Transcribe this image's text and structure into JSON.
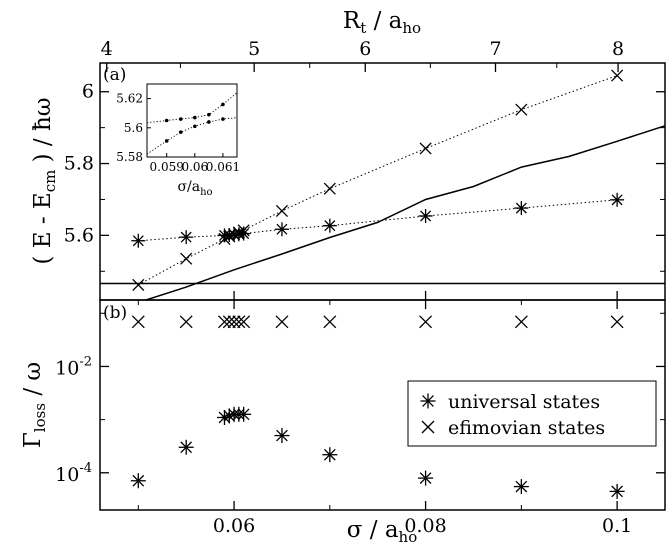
{
  "chart_data": [
    {
      "id": "panel_a",
      "type": "line",
      "panel_label": "(a)",
      "xlim": [
        0.046,
        0.105
      ],
      "ylim": [
        5.42,
        6.08
      ],
      "ylabel": {
        "prefix": "( E - E",
        "sub": "cm",
        "suffix": " ) / ħω"
      },
      "yticks": [
        5.6,
        5.8,
        6.0
      ],
      "ytick_labels": [
        "5.6",
        "5.8",
        "6"
      ],
      "top_axis": {
        "label_main": "R",
        "label_sub_t": "t",
        "label_mid": " / a",
        "label_sub_ho": "ho",
        "ticks": [
          {
            "label": "4",
            "x": 0.0467
          },
          {
            "label": "5",
            "x": 0.0621
          },
          {
            "label": "6",
            "x": 0.0737
          },
          {
            "label": "7",
            "x": 0.0873
          },
          {
            "label": "8",
            "x": 0.1001
          }
        ]
      },
      "series": [
        {
          "marker": "asterisk",
          "linestyle": "dotted",
          "x": [
            0.05,
            0.055,
            0.059,
            0.0595,
            0.06,
            0.0605,
            0.061,
            0.065,
            0.07,
            0.08,
            0.09,
            0.1
          ],
          "y": [
            5.585,
            5.595,
            5.6,
            5.601,
            5.602,
            5.603,
            5.605,
            5.617,
            5.627,
            5.654,
            5.676,
            5.699
          ]
        },
        {
          "marker": "cross",
          "linestyle": "dotted",
          "x": [
            0.05,
            0.055,
            0.059,
            0.0595,
            0.06,
            0.0605,
            0.061,
            0.065,
            0.07,
            0.08,
            0.09,
            0.1
          ],
          "y": [
            5.462,
            5.535,
            5.59,
            5.597,
            5.603,
            5.608,
            5.614,
            5.668,
            5.73,
            5.842,
            5.95,
            6.045
          ]
        },
        {
          "linestyle": "solid",
          "x": [
            0.0508,
            0.055,
            0.06,
            0.065,
            0.07,
            0.075,
            0.08,
            0.085,
            0.09,
            0.095,
            0.1,
            0.105
          ],
          "y": [
            5.42,
            5.456,
            5.504,
            5.548,
            5.594,
            5.636,
            5.7,
            5.736,
            5.79,
            5.82,
            5.862,
            5.905
          ]
        },
        {
          "linestyle": "solid",
          "x": [
            0.046,
            0.105
          ],
          "y": [
            5.466,
            5.466
          ]
        }
      ],
      "inset": {
        "xlim": [
          0.0583,
          0.0615
        ],
        "ylim": [
          5.58,
          5.63
        ],
        "xticks": [
          0.059,
          0.06,
          0.061
        ],
        "xtick_labels": [
          "0.059",
          "0.06",
          "0.061"
        ],
        "yticks": [
          5.58,
          5.6,
          5.62
        ],
        "ytick_labels": [
          "5.58",
          "5.6",
          "5.62"
        ],
        "xlabel": {
          "main": "σ/a",
          "sub": "ho"
        },
        "series": [
          {
            "marker": "dot",
            "x": [
              0.0583,
              0.059,
              0.0595,
              0.06,
              0.0605,
              0.061,
              0.0615
            ],
            "y": [
              5.6035,
              5.605,
              5.606,
              5.607,
              5.609,
              5.616,
              5.624
            ]
          },
          {
            "marker": "dot",
            "x": [
              0.0583,
              0.059,
              0.0595,
              0.06,
              0.0605,
              0.061,
              0.0615
            ],
            "y": [
              5.582,
              5.591,
              5.597,
              5.601,
              5.604,
              5.606,
              5.607
            ]
          }
        ]
      }
    },
    {
      "id": "panel_b",
      "type": "scatter",
      "panel_label": "(b)",
      "xlim": [
        0.046,
        0.105
      ],
      "ylog": true,
      "ylim_log10": [
        -4.7,
        -0.75
      ],
      "ylabel": {
        "main": "Γ",
        "sub": "loss",
        "suffix": " / ω"
      },
      "yticks_log10": [
        -4,
        -2
      ],
      "ytick_labels": [
        {
          "base": "10",
          "exp": "-4"
        },
        {
          "base": "10",
          "exp": "-2"
        }
      ],
      "xticks": [
        0.06,
        0.08,
        0.1
      ],
      "xtick_labels": [
        "0.06",
        "0.08",
        "0.1"
      ],
      "xlabel": {
        "main": "σ / a",
        "sub": "ho"
      },
      "legend": {
        "position": "center-right",
        "entries": [
          "universal states",
          "efimovian states"
        ]
      },
      "series": [
        {
          "marker": "asterisk",
          "x": [
            0.05,
            0.055,
            0.059,
            0.0595,
            0.06,
            0.0605,
            0.061,
            0.065,
            0.07,
            0.08,
            0.09,
            0.1
          ],
          "y_log10": [
            -4.15,
            -3.52,
            -2.96,
            -2.93,
            -2.9,
            -2.9,
            -2.9,
            -3.3,
            -3.66,
            -4.1,
            -4.26,
            -4.35
          ]
        },
        {
          "marker": "cross",
          "x": [
            0.05,
            0.055,
            0.059,
            0.0595,
            0.06,
            0.0605,
            0.061,
            0.065,
            0.07,
            0.08,
            0.09,
            0.1
          ],
          "y_log10": [
            -1.16,
            -1.16,
            -1.16,
            -1.16,
            -1.16,
            -1.16,
            -1.16,
            -1.16,
            -1.16,
            -1.16,
            -1.16,
            -1.16
          ]
        }
      ]
    }
  ]
}
